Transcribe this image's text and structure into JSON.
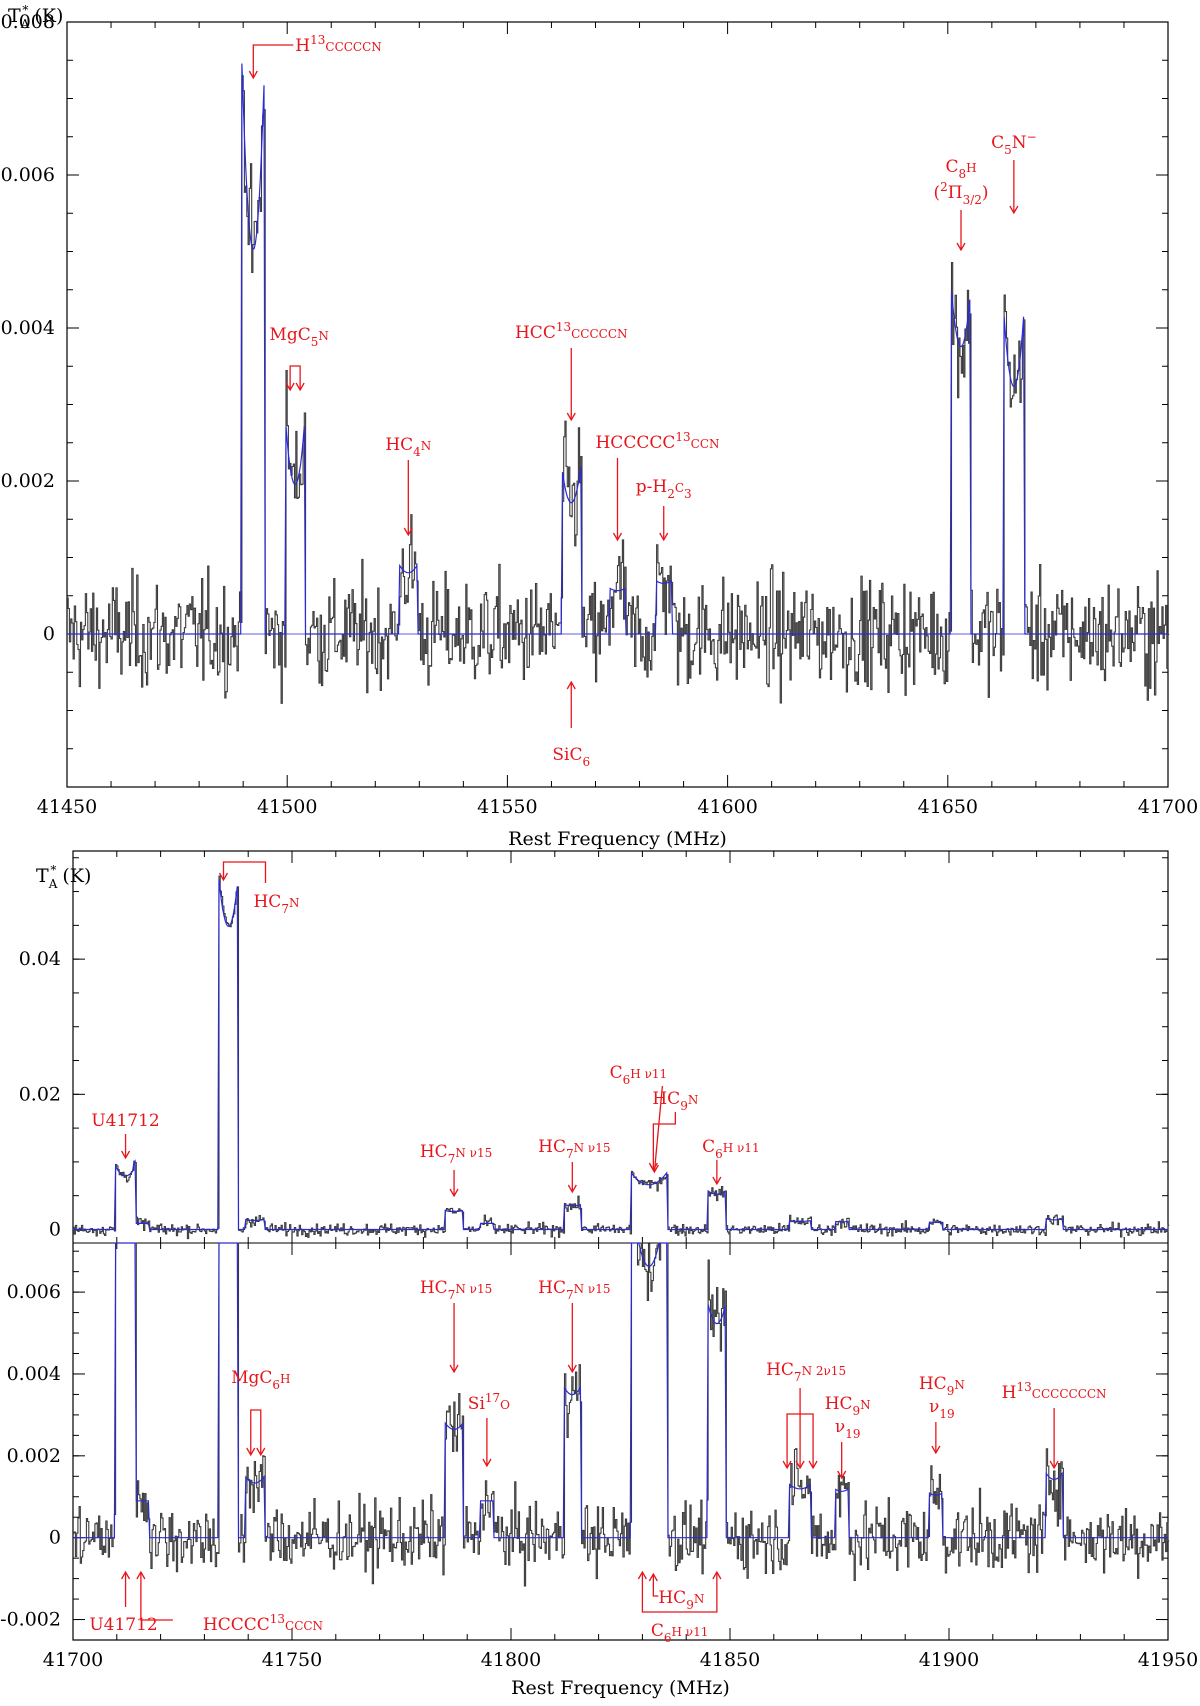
{
  "chart_data": [
    {
      "type": "line",
      "panel": "top",
      "title": "",
      "xlabel": "Rest Frequency (MHz)",
      "ylabel": "T_A* (K)",
      "xlim": [
        41450,
        41700
      ],
      "ylim": [
        -0.002,
        0.008
      ],
      "xticks": [
        "41450",
        "41500",
        "41550",
        "41600",
        "41650",
        "41700"
      ],
      "yticks": [
        {
          "value": 0,
          "label": "0"
        },
        {
          "value": 0.002,
          "label": "0.002"
        },
        {
          "value": 0.004,
          "label": "0.004"
        },
        {
          "value": 0.006,
          "label": "0.006"
        },
        {
          "value": 0.008,
          "label": "0.008"
        }
      ],
      "grid": false,
      "series": [
        {
          "role": "observed",
          "color": "#3a3a3a"
        },
        {
          "role": "model",
          "color": "#2b2bd6"
        }
      ],
      "lines": [
        {
          "center": 41492.3,
          "width": 2.6,
          "peak": 0.0075,
          "split": 0.6
        },
        {
          "center": 41501.8,
          "width": 2.2,
          "peak": 0.0028,
          "split": 0.55
        },
        {
          "center": 41527.5,
          "width": 2.0,
          "peak": 0.0009,
          "split": 0.2
        },
        {
          "center": 41564.5,
          "width": 2.2,
          "peak": 0.0022,
          "split": 0.4
        },
        {
          "center": 41575.0,
          "width": 1.8,
          "peak": 0.0006,
          "split": 0.1
        },
        {
          "center": 41585.5,
          "width": 1.8,
          "peak": 0.0007,
          "split": 0.1
        },
        {
          "center": 41653.0,
          "width": 2.2,
          "peak": 0.0045,
          "split": 0.3
        },
        {
          "center": 41665.0,
          "width": 2.4,
          "peak": 0.0043,
          "split": 0.45
        }
      ],
      "noise_rms": 0.0005,
      "annotations": [
        {
          "label": "H",
          "sup": "13",
          "rest": "CCCCCN",
          "x": 41492.3,
          "dir": "down"
        },
        {
          "label": "MgC",
          "sub": "5",
          "rest": "N",
          "x": 41501.8,
          "dir": "down",
          "pair": true
        },
        {
          "label": "HC",
          "sub": "4",
          "rest": "N",
          "x": 41527.5,
          "dir": "down"
        },
        {
          "label": "HCC",
          "sup": "13",
          "rest": "CCCCCN",
          "x": 41564.5,
          "dir": "down"
        },
        {
          "label": "HCCCCC",
          "sup": "13",
          "rest": "CCN",
          "x": 41575.0,
          "dir": "down"
        },
        {
          "label": "p-H",
          "sub": "2",
          "rest": "C",
          "sub2": "3",
          "x": 41585.5,
          "dir": "down"
        },
        {
          "label": "C",
          "sub": "8",
          "rest": "H",
          "line2": "(²Π3/2)",
          "x": 41653.0,
          "dir": "down"
        },
        {
          "label": "C",
          "sub": "5",
          "rest": "N⁻",
          "x": 41665.0,
          "dir": "down"
        },
        {
          "label": "SiC",
          "sub": "6",
          "rest": "",
          "x": 41564.5,
          "dir": "up"
        }
      ]
    },
    {
      "type": "line",
      "panel": "bottom-upper",
      "ylabel": "T_A* (K)",
      "xlim": [
        41700,
        41950
      ],
      "ylim": [
        -0.002,
        0.056
      ],
      "yticks": [
        {
          "value": 0,
          "label": "0"
        },
        {
          "value": 0.02,
          "label": "0.02"
        },
        {
          "value": 0.04,
          "label": "0.04"
        }
      ],
      "annotations": [
        {
          "label": "U41712",
          "x": 41712
        },
        {
          "label": "HC",
          "sub": "7",
          "rest": "N",
          "x": 41735.5
        },
        {
          "label": "HC",
          "sub": "7",
          "rest": "N  ν15",
          "x": 41787
        },
        {
          "label": "HC",
          "sub": "7",
          "rest": "N  ν15",
          "x": 41814
        },
        {
          "label": "C",
          "sub": "6",
          "rest": "H  ν11",
          "x": 41830
        },
        {
          "label": "HC",
          "sub": "9",
          "rest": "N",
          "x": 41832.5
        },
        {
          "label": "C",
          "sub": "6",
          "rest": "H  ν11",
          "x": 41847
        }
      ]
    },
    {
      "type": "line",
      "panel": "bottom-lower",
      "xlabel": "Rest Frequency (MHz)",
      "xlim": [
        41700,
        41950
      ],
      "ylim": [
        -0.0025,
        0.0072
      ],
      "xticks": [
        "41700",
        "41750",
        "41800",
        "41850",
        "41900",
        "41950"
      ],
      "yticks": [
        {
          "value": -0.002,
          "label": "-0.002"
        },
        {
          "value": 0,
          "label": "0"
        },
        {
          "value": 0.002,
          "label": "0.002"
        },
        {
          "value": 0.004,
          "label": "0.004"
        },
        {
          "value": 0.006,
          "label": "0.006"
        }
      ],
      "lines": [
        {
          "center": 41712.0,
          "width": 2.4,
          "peak": 0.0095,
          "split": 0.3
        },
        {
          "center": 41715.5,
          "width": 1.8,
          "peak": 0.0009,
          "split": 0.0
        },
        {
          "center": 41735.5,
          "width": 2.2,
          "peak": 0.052,
          "split": 0.25
        },
        {
          "center": 41741.5,
          "width": 2.2,
          "peak": 0.0015,
          "split": 0.2
        },
        {
          "center": 41787.0,
          "width": 2.0,
          "peak": 0.0028,
          "split": 0.1
        },
        {
          "center": 41794.5,
          "width": 1.6,
          "peak": 0.0009,
          "split": 0.0
        },
        {
          "center": 41814.0,
          "width": 2.0,
          "peak": 0.0037,
          "split": 0.1
        },
        {
          "center": 41831.5,
          "width": 4.2,
          "peak": 0.0085,
          "split": 0.4
        },
        {
          "center": 41847.0,
          "width": 2.0,
          "peak": 0.0057,
          "split": 0.15
        },
        {
          "center": 41866.0,
          "width": 2.4,
          "peak": 0.0013,
          "split": 0.15
        },
        {
          "center": 41875.5,
          "width": 1.6,
          "peak": 0.0012,
          "split": 0.1
        },
        {
          "center": 41897.0,
          "width": 1.6,
          "peak": 0.0011,
          "split": 0.1
        },
        {
          "center": 41924.0,
          "width": 2.0,
          "peak": 0.0016,
          "split": 0.2
        }
      ],
      "noise_rms": 0.0006,
      "annotations": [
        {
          "label": "HC",
          "sub": "7",
          "rest": "N  ν15",
          "x": 41787
        },
        {
          "label": "HC",
          "sub": "7",
          "rest": "N  ν15",
          "x": 41814
        },
        {
          "label": "MgC",
          "sub": "6",
          "rest": "H",
          "x": 41741.5,
          "pair": true
        },
        {
          "label": "Si",
          "sup": "17",
          "rest": "O",
          "x": 41794.5
        },
        {
          "label": "HC",
          "sub": "7",
          "rest": "N  2ν15",
          "x": 41866,
          "triple": true
        },
        {
          "label": "HC",
          "sub": "9",
          "rest": "N",
          "line2": "ν19",
          "x": 41875.5
        },
        {
          "label": "HC",
          "sub": "9",
          "rest": "N",
          "line2": "ν19",
          "x": 41897
        },
        {
          "label": "H",
          "sup": "13",
          "rest": "CCCCCCCN",
          "x": 41924
        },
        {
          "label": "U41712",
          "x": 41712,
          "dir": "up"
        },
        {
          "label": "HCCCC",
          "sup": "13",
          "rest": "CCCN",
          "x": 41715.5,
          "dir": "up"
        },
        {
          "label": "HC",
          "sub": "9",
          "rest": "N",
          "x": 41832.5,
          "dir": "up"
        },
        {
          "label": "C",
          "sub": "6",
          "rest": "H  ν11",
          "x": 41830,
          "dir": "up",
          "bracket_to": 41847
        }
      ]
    }
  ]
}
